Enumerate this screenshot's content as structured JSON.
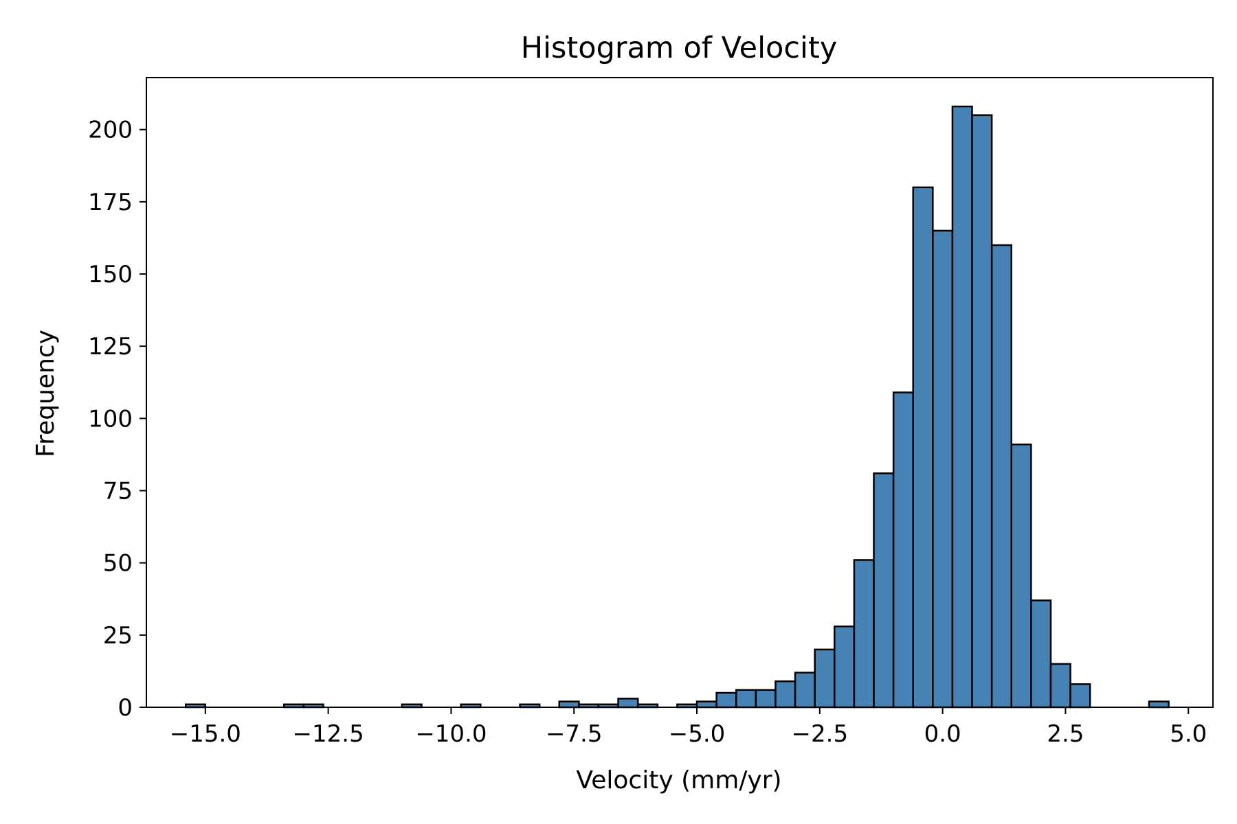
{
  "chart_data": {
    "type": "bar",
    "title": "Histogram of Velocity",
    "xlabel": "Velocity (mm/yr)",
    "ylabel": "Frequency",
    "xlim": [
      -16.2,
      5.5
    ],
    "ylim": [
      0,
      218
    ],
    "grid": false,
    "legend": "none",
    "bar_color": "#4682b4",
    "edge_color": "#000000",
    "bin_width": 0.4,
    "x_ticks": [
      {
        "value": -15,
        "label": "−15.0"
      },
      {
        "value": -12.5,
        "label": "−12.5"
      },
      {
        "value": -10,
        "label": "−10.0"
      },
      {
        "value": -7.5,
        "label": "−7.5"
      },
      {
        "value": -5,
        "label": "−5.0"
      },
      {
        "value": -2.5,
        "label": "−2.5"
      },
      {
        "value": 0,
        "label": "0.0"
      },
      {
        "value": 2.5,
        "label": "2.5"
      },
      {
        "value": 5,
        "label": "5.0"
      }
    ],
    "y_ticks": [
      {
        "value": 0,
        "label": "0"
      },
      {
        "value": 25,
        "label": "25"
      },
      {
        "value": 50,
        "label": "50"
      },
      {
        "value": 75,
        "label": "75"
      },
      {
        "value": 100,
        "label": "100"
      },
      {
        "value": 125,
        "label": "125"
      },
      {
        "value": 150,
        "label": "150"
      },
      {
        "value": 175,
        "label": "175"
      },
      {
        "value": 200,
        "label": "200"
      }
    ],
    "bins": [
      {
        "x0": -15.4,
        "count": 1
      },
      {
        "x0": -15.0,
        "count": 0
      },
      {
        "x0": -14.6,
        "count": 0
      },
      {
        "x0": -14.2,
        "count": 0
      },
      {
        "x0": -13.8,
        "count": 0
      },
      {
        "x0": -13.4,
        "count": 1
      },
      {
        "x0": -13.0,
        "count": 1
      },
      {
        "x0": -12.6,
        "count": 0
      },
      {
        "x0": -12.2,
        "count": 0
      },
      {
        "x0": -11.8,
        "count": 0
      },
      {
        "x0": -11.4,
        "count": 0
      },
      {
        "x0": -11.0,
        "count": 1
      },
      {
        "x0": -10.6,
        "count": 0
      },
      {
        "x0": -10.2,
        "count": 0
      },
      {
        "x0": -9.8,
        "count": 1
      },
      {
        "x0": -9.4,
        "count": 0
      },
      {
        "x0": -9.0,
        "count": 0
      },
      {
        "x0": -8.6,
        "count": 1
      },
      {
        "x0": -8.2,
        "count": 0
      },
      {
        "x0": -7.8,
        "count": 2
      },
      {
        "x0": -7.4,
        "count": 1
      },
      {
        "x0": -7.0,
        "count": 1
      },
      {
        "x0": -6.6,
        "count": 3
      },
      {
        "x0": -6.2,
        "count": 1
      },
      {
        "x0": -5.8,
        "count": 0
      },
      {
        "x0": -5.4,
        "count": 1
      },
      {
        "x0": -5.0,
        "count": 2
      },
      {
        "x0": -4.6,
        "count": 5
      },
      {
        "x0": -4.2,
        "count": 6
      },
      {
        "x0": -3.8,
        "count": 6
      },
      {
        "x0": -3.4,
        "count": 9
      },
      {
        "x0": -3.0,
        "count": 12
      },
      {
        "x0": -2.6,
        "count": 20
      },
      {
        "x0": -2.2,
        "count": 28
      },
      {
        "x0": -1.8,
        "count": 51
      },
      {
        "x0": -1.4,
        "count": 81
      },
      {
        "x0": -1.0,
        "count": 109
      },
      {
        "x0": -0.6,
        "count": 180
      },
      {
        "x0": -0.2,
        "count": 165
      },
      {
        "x0": 0.2,
        "count": 208
      },
      {
        "x0": 0.6,
        "count": 205
      },
      {
        "x0": 1.0,
        "count": 160
      },
      {
        "x0": 1.4,
        "count": 91
      },
      {
        "x0": 1.8,
        "count": 37
      },
      {
        "x0": 2.2,
        "count": 15
      },
      {
        "x0": 2.6,
        "count": 8
      },
      {
        "x0": 3.0,
        "count": 0
      },
      {
        "x0": 3.4,
        "count": 0
      },
      {
        "x0": 3.8,
        "count": 0
      },
      {
        "x0": 4.2,
        "count": 2
      }
    ]
  }
}
